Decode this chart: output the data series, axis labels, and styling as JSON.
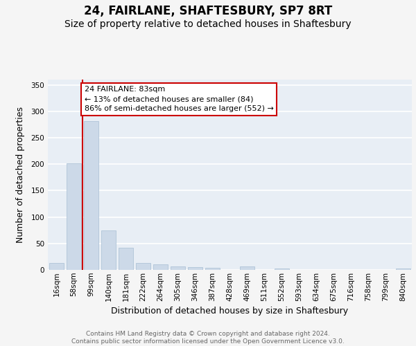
{
  "title1": "24, FAIRLANE, SHAFTESBURY, SP7 8RT",
  "title2": "Size of property relative to detached houses in Shaftesbury",
  "xlabel": "Distribution of detached houses by size in Shaftesbury",
  "ylabel": "Number of detached properties",
  "categories": [
    "16sqm",
    "58sqm",
    "99sqm",
    "140sqm",
    "181sqm",
    "222sqm",
    "264sqm",
    "305sqm",
    "346sqm",
    "387sqm",
    "428sqm",
    "469sqm",
    "511sqm",
    "552sqm",
    "593sqm",
    "634sqm",
    "675sqm",
    "716sqm",
    "758sqm",
    "799sqm",
    "840sqm"
  ],
  "values": [
    13,
    202,
    281,
    75,
    42,
    13,
    10,
    6,
    5,
    4,
    0,
    6,
    0,
    3,
    0,
    0,
    0,
    0,
    0,
    0,
    3
  ],
  "bar_color": "#ccd9e8",
  "bar_edgecolor": "#b0c4d8",
  "vline_color": "#cc0000",
  "vline_x": 1.5,
  "annotation_text": "24 FAIRLANE: 83sqm\n← 13% of detached houses are smaller (84)\n86% of semi-detached houses are larger (552) →",
  "annotation_box_facecolor": "#ffffff",
  "annotation_box_edgecolor": "#cc0000",
  "ylim": [
    0,
    360
  ],
  "yticks": [
    0,
    50,
    100,
    150,
    200,
    250,
    300,
    350
  ],
  "plot_bg_color": "#e8eef5",
  "grid_color": "#ffffff",
  "fig_bg_color": "#f5f5f5",
  "title1_fontsize": 12,
  "title2_fontsize": 10,
  "tick_fontsize": 7.5,
  "ylabel_fontsize": 9,
  "xlabel_fontsize": 9,
  "annotation_fontsize": 8,
  "footer_fontsize": 6.5,
  "footer": "Contains HM Land Registry data © Crown copyright and database right 2024.\nContains public sector information licensed under the Open Government Licence v3.0.",
  "footer_color": "#666666"
}
